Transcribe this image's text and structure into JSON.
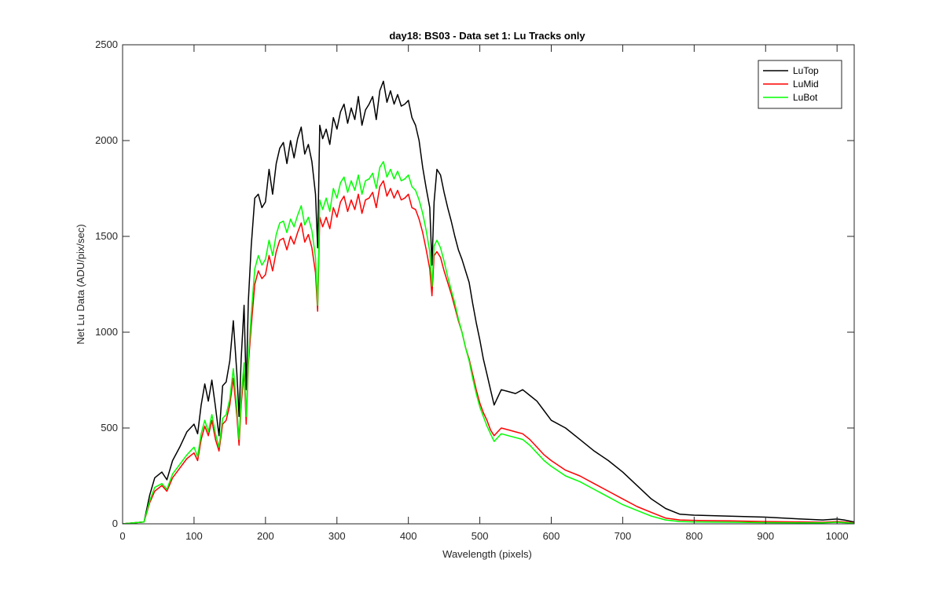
{
  "chart_data": {
    "type": "line",
    "title": "day18: BS03 - Data set 1: Lu Tracks only",
    "xlabel": "Wavelength (pixels)",
    "ylabel": "Net Lu Data (ADU/pix/sec)",
    "xlim": [
      0,
      1024
    ],
    "ylim": [
      0,
      2500
    ],
    "xticks": [
      0,
      100,
      200,
      300,
      400,
      500,
      600,
      700,
      800,
      900,
      1000
    ],
    "yticks": [
      0,
      500,
      1000,
      1500,
      2000,
      2500
    ],
    "grid": false,
    "legend_position": "top-right",
    "series": [
      {
        "name": "LuTop",
        "color": "#000000",
        "x": [
          0,
          30,
          38,
          45,
          55,
          62,
          70,
          80,
          90,
          100,
          105,
          110,
          115,
          120,
          125,
          130,
          135,
          140,
          145,
          150,
          155,
          160,
          163,
          166,
          170,
          173,
          176,
          180,
          185,
          190,
          195,
          200,
          205,
          210,
          215,
          220,
          225,
          230,
          235,
          240,
          245,
          250,
          255,
          260,
          265,
          270,
          273,
          276,
          280,
          285,
          290,
          295,
          300,
          305,
          310,
          315,
          320,
          325,
          330,
          335,
          340,
          345,
          350,
          355,
          360,
          365,
          370,
          375,
          380,
          385,
          390,
          395,
          400,
          405,
          410,
          415,
          420,
          425,
          430,
          433,
          436,
          440,
          445,
          450,
          455,
          460,
          465,
          470,
          475,
          480,
          485,
          490,
          495,
          500,
          505,
          510,
          515,
          520,
          525,
          530,
          540,
          550,
          560,
          570,
          580,
          590,
          600,
          620,
          640,
          660,
          680,
          700,
          720,
          740,
          760,
          780,
          800,
          850,
          900,
          950,
          980,
          1000,
          1010,
          1024
        ],
        "y": [
          0,
          10,
          150,
          240,
          270,
          230,
          330,
          400,
          480,
          520,
          470,
          620,
          730,
          640,
          750,
          610,
          460,
          720,
          740,
          850,
          1060,
          780,
          560,
          860,
          1140,
          700,
          1160,
          1450,
          1700,
          1720,
          1650,
          1680,
          1850,
          1720,
          1880,
          1960,
          1990,
          1880,
          2000,
          1910,
          2010,
          2070,
          1930,
          1980,
          1890,
          1720,
          1440,
          2080,
          2010,
          2060,
          1980,
          2120,
          2060,
          2150,
          2190,
          2090,
          2170,
          2110,
          2230,
          2080,
          2160,
          2190,
          2230,
          2110,
          2260,
          2310,
          2200,
          2260,
          2190,
          2240,
          2180,
          2190,
          2210,
          2120,
          2080,
          2000,
          1860,
          1750,
          1650,
          1350,
          1680,
          1850,
          1820,
          1730,
          1650,
          1580,
          1500,
          1430,
          1380,
          1320,
          1260,
          1150,
          1050,
          960,
          860,
          780,
          700,
          620,
          660,
          700,
          690,
          680,
          700,
          670,
          640,
          590,
          540,
          500,
          440,
          380,
          330,
          270,
          200,
          130,
          80,
          50,
          45,
          40,
          35,
          25,
          20,
          25,
          20,
          10
        ]
      },
      {
        "name": "LuMid",
        "color": "#ff0000",
        "x": [
          0,
          30,
          38,
          45,
          55,
          62,
          70,
          80,
          90,
          100,
          105,
          110,
          115,
          120,
          125,
          130,
          135,
          140,
          145,
          150,
          155,
          160,
          163,
          166,
          170,
          173,
          176,
          180,
          185,
          190,
          195,
          200,
          205,
          210,
          215,
          220,
          225,
          230,
          235,
          240,
          245,
          250,
          255,
          260,
          265,
          270,
          273,
          276,
          280,
          285,
          290,
          295,
          300,
          305,
          310,
          315,
          320,
          325,
          330,
          335,
          340,
          345,
          350,
          355,
          360,
          365,
          370,
          375,
          380,
          385,
          390,
          395,
          400,
          405,
          410,
          415,
          420,
          425,
          430,
          433,
          436,
          440,
          445,
          450,
          455,
          460,
          465,
          470,
          475,
          480,
          485,
          490,
          495,
          500,
          505,
          510,
          515,
          520,
          525,
          530,
          540,
          550,
          560,
          570,
          580,
          590,
          600,
          620,
          640,
          660,
          680,
          700,
          720,
          740,
          760,
          780,
          800,
          850,
          900,
          950,
          980,
          1000,
          1010,
          1024
        ],
        "y": [
          0,
          10,
          110,
          170,
          200,
          170,
          240,
          290,
          340,
          370,
          330,
          440,
          510,
          460,
          540,
          440,
          380,
          520,
          540,
          620,
          760,
          560,
          410,
          620,
          800,
          520,
          830,
          1030,
          1250,
          1320,
          1280,
          1300,
          1400,
          1320,
          1420,
          1480,
          1490,
          1430,
          1500,
          1460,
          1520,
          1570,
          1470,
          1510,
          1440,
          1310,
          1110,
          1600,
          1550,
          1600,
          1540,
          1650,
          1600,
          1680,
          1710,
          1630,
          1690,
          1640,
          1720,
          1620,
          1690,
          1700,
          1730,
          1650,
          1760,
          1790,
          1710,
          1750,
          1700,
          1740,
          1690,
          1700,
          1720,
          1650,
          1640,
          1590,
          1520,
          1430,
          1330,
          1190,
          1400,
          1420,
          1390,
          1320,
          1260,
          1200,
          1130,
          1060,
          1000,
          920,
          860,
          780,
          700,
          630,
          580,
          540,
          490,
          460,
          480,
          500,
          490,
          480,
          470,
          440,
          400,
          360,
          330,
          280,
          250,
          210,
          170,
          130,
          90,
          60,
          30,
          20,
          18,
          15,
          12,
          10,
          8,
          12,
          10,
          5
        ]
      },
      {
        "name": "LuBot",
        "color": "#00ff00",
        "x": [
          0,
          30,
          38,
          45,
          55,
          62,
          70,
          80,
          90,
          100,
          105,
          110,
          115,
          120,
          125,
          130,
          135,
          140,
          145,
          150,
          155,
          160,
          163,
          166,
          170,
          173,
          176,
          180,
          185,
          190,
          195,
          200,
          205,
          210,
          215,
          220,
          225,
          230,
          235,
          240,
          245,
          250,
          255,
          260,
          265,
          270,
          273,
          276,
          280,
          285,
          290,
          295,
          300,
          305,
          310,
          315,
          320,
          325,
          330,
          335,
          340,
          345,
          350,
          355,
          360,
          365,
          370,
          375,
          380,
          385,
          390,
          395,
          400,
          405,
          410,
          415,
          420,
          425,
          430,
          433,
          436,
          440,
          445,
          450,
          455,
          460,
          465,
          470,
          475,
          480,
          485,
          490,
          495,
          500,
          505,
          510,
          515,
          520,
          525,
          530,
          540,
          550,
          560,
          570,
          580,
          590,
          600,
          620,
          640,
          660,
          680,
          700,
          720,
          740,
          760,
          780,
          800,
          850,
          900,
          950,
          980,
          1000,
          1010,
          1024
        ],
        "y": [
          0,
          10,
          120,
          190,
          210,
          180,
          260,
          310,
          360,
          400,
          350,
          470,
          540,
          480,
          570,
          470,
          400,
          550,
          570,
          650,
          810,
          600,
          440,
          660,
          840,
          560,
          860,
          1090,
          1330,
          1400,
          1350,
          1380,
          1480,
          1400,
          1510,
          1570,
          1580,
          1520,
          1590,
          1550,
          1610,
          1660,
          1560,
          1600,
          1530,
          1390,
          1140,
          1690,
          1640,
          1700,
          1630,
          1750,
          1700,
          1780,
          1810,
          1730,
          1790,
          1740,
          1820,
          1720,
          1790,
          1800,
          1830,
          1750,
          1860,
          1890,
          1810,
          1850,
          1800,
          1840,
          1790,
          1800,
          1820,
          1760,
          1740,
          1690,
          1620,
          1530,
          1420,
          1240,
          1450,
          1480,
          1440,
          1370,
          1290,
          1220,
          1150,
          1070,
          1000,
          920,
          850,
          760,
          680,
          610,
          560,
          510,
          470,
          430,
          450,
          470,
          460,
          450,
          440,
          410,
          370,
          330,
          300,
          250,
          220,
          180,
          140,
          100,
          70,
          40,
          20,
          12,
          10,
          8,
          6,
          5,
          5,
          8,
          6,
          3
        ]
      }
    ]
  }
}
